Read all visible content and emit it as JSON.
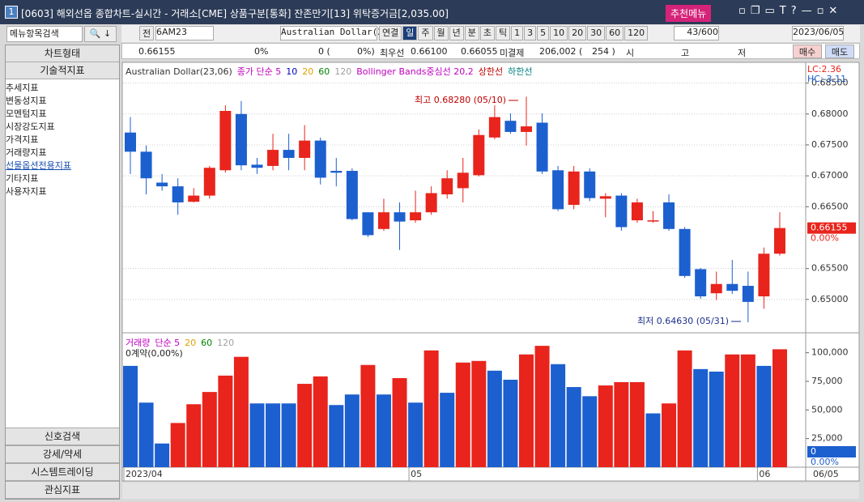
{
  "window": {
    "number": "1",
    "title": "[0603] 해외선옵 종합차트-실시간 - 거래소[CME] 상품구분[통화] 잔존만기[13] 위탁증거금[2,035.00]",
    "menu": "추천메뉴"
  },
  "toolbar": {
    "prev": "전",
    "code": "6AM23",
    "name": "Australian Dollar(23",
    "periods": [
      "연결",
      "일",
      "주",
      "월",
      "년",
      "분",
      "초",
      "틱",
      "1",
      "3",
      "5",
      "10",
      "20",
      "30",
      "60",
      "120"
    ],
    "count": "43/600",
    "date": "2023/06/05"
  },
  "quote": {
    "price": "0.66155",
    "change_pct": "0%",
    "volume": "0 (",
    "volume_pct": "0%)",
    "best_label": "최우선",
    "bid": "0.66100",
    "ask": "0.66055",
    "oi_label": "미결제",
    "oi": "206,002 (",
    "oi_change": "254 )",
    "open_label": "시",
    "high_label": "고",
    "low_label": "저",
    "buy": "매수",
    "sell": "매도"
  },
  "sidebar": {
    "search": "메뉴항목검색",
    "chart_type": "차트형태",
    "indicators": "기술적지표",
    "items": [
      "추세지표",
      "변동성지표",
      "모멘텀지표",
      "시장강도지표",
      "가격지표",
      "거래량지표",
      "선물옵션전용지표",
      "기타지표",
      "사용자지표"
    ],
    "bottom": [
      "신호검색",
      "강세/약세",
      "시스템트레이딩",
      "관심지표"
    ]
  },
  "chart_data": [
    {
      "type": "candlestick",
      "legend": [
        {
          "name": "Australian Dollar(23,06)",
          "color": "#333333"
        },
        {
          "name": "종가 단순 5",
          "color": "#c000c0"
        },
        {
          "name": "10",
          "color": "#0000c0"
        },
        {
          "name": "20",
          "color": "#e0a000"
        },
        {
          "name": "60",
          "color": "#008000"
        },
        {
          "name": "120",
          "color": "#a0a0a0"
        },
        {
          "name": "Bollinger Bands중심선 20,2",
          "color": "#c000c0"
        },
        {
          "name": "상한선",
          "color": "#c00000"
        },
        {
          "name": "하한선",
          "color": "#008080"
        }
      ],
      "categories": [
        "2023/04",
        null,
        null,
        null,
        null,
        null,
        null,
        null,
        null,
        null,
        null,
        null,
        null,
        null,
        null,
        null,
        null,
        null,
        "05",
        null,
        null,
        null,
        null,
        null,
        null,
        null,
        null,
        null,
        null,
        null,
        null,
        null,
        null,
        null,
        null,
        null,
        null,
        null,
        null,
        null,
        "06",
        null
      ],
      "last_date": "06/05",
      "open": [
        0.677,
        0.6739,
        0.6689,
        0.6683,
        0.6658,
        0.6668,
        0.6709,
        0.68,
        0.6718,
        0.6716,
        0.6742,
        0.6729,
        0.6757,
        0.6708,
        0.6708,
        0.6641,
        0.6614,
        0.6641,
        0.6628,
        0.6641,
        0.667,
        0.668,
        0.6701,
        0.6762,
        0.6789,
        0.6771,
        0.6786,
        0.6709,
        0.6653,
        0.6707,
        0.6663,
        0.6668,
        0.6628,
        0.6626,
        0.6657,
        0.6614,
        0.6549,
        0.651,
        0.6525,
        0.6522,
        0.6505,
        0.6574
      ],
      "high": [
        0.6795,
        0.6749,
        0.6703,
        0.6696,
        0.668,
        0.6716,
        0.6814,
        0.6821,
        0.6729,
        0.6768,
        0.6768,
        0.6782,
        0.6762,
        0.6729,
        0.6712,
        0.6641,
        0.6663,
        0.6657,
        0.6676,
        0.6683,
        0.6709,
        0.6729,
        0.6775,
        0.6814,
        0.6801,
        0.6828,
        0.6801,
        0.6716,
        0.6716,
        0.6712,
        0.6672,
        0.6672,
        0.6663,
        0.6643,
        0.667,
        0.6617,
        0.6551,
        0.6545,
        0.6564,
        0.6545,
        0.6584,
        0.6641
      ],
      "low": [
        0.6703,
        0.667,
        0.6676,
        0.6637,
        0.6657,
        0.6663,
        0.6705,
        0.6709,
        0.6703,
        0.6709,
        0.6709,
        0.6709,
        0.6686,
        0.6683,
        0.6628,
        0.6601,
        0.6611,
        0.658,
        0.6624,
        0.6637,
        0.6663,
        0.6657,
        0.6699,
        0.6759,
        0.6768,
        0.6749,
        0.6703,
        0.6643,
        0.6646,
        0.6659,
        0.6633,
        0.6611,
        0.6624,
        0.6624,
        0.6611,
        0.6535,
        0.6501,
        0.6499,
        0.6509,
        0.6463,
        0.6485,
        0.6571
      ],
      "close": [
        0.6739,
        0.6696,
        0.6683,
        0.6657,
        0.6668,
        0.6713,
        0.6805,
        0.6717,
        0.6713,
        0.6742,
        0.6729,
        0.6757,
        0.6697,
        0.6705,
        0.663,
        0.6604,
        0.6641,
        0.6626,
        0.6641,
        0.6672,
        0.6696,
        0.6705,
        0.6766,
        0.6795,
        0.6771,
        0.678,
        0.6707,
        0.6646,
        0.6707,
        0.6664,
        0.6667,
        0.6617,
        0.6657,
        0.6628,
        0.6614,
        0.6538,
        0.6505,
        0.6525,
        0.6514,
        0.6496,
        0.6574,
        0.66155
      ],
      "up_color": "#e8241c",
      "down_color": "#1c5fcf",
      "ylim": [
        0.645,
        0.686
      ],
      "yticks": [
        {
          "value": 0.65,
          "label": "0.65000"
        },
        {
          "value": 0.655,
          "label": "0.65500"
        },
        {
          "value": 0.665,
          "label": "0.66500"
        },
        {
          "value": 0.67,
          "label": "0.67000"
        },
        {
          "value": 0.675,
          "label": "0.67500"
        },
        {
          "value": 0.68,
          "label": "0.68000"
        },
        {
          "value": 0.685,
          "label": "0.68500"
        }
      ],
      "grid": true,
      "annotations": [
        "최고 0.68280 (05/10)",
        "최저 0.64630 (05/31)"
      ],
      "lc": "LC:2.36",
      "hc": "HC:-3.11",
      "last_price": 0.66155,
      "last_change": "0.00%"
    },
    {
      "type": "bar",
      "legend": [
        {
          "name": "거래량",
          "color": "#c000c0"
        },
        {
          "name": "단순 5",
          "color": "#c000c0"
        },
        {
          "name": "20",
          "color": "#e0a000"
        },
        {
          "name": "60",
          "color": "#008000"
        },
        {
          "name": "120",
          "color": "#a0a0a0"
        }
      ],
      "note": "0계약(0,00%)",
      "values": [
        88500,
        56400,
        20700,
        38600,
        55000,
        65700,
        80000,
        96400,
        55700,
        55700,
        55700,
        72800,
        79300,
        54300,
        63500,
        89300,
        63500,
        77800,
        56400,
        102000,
        65000,
        91400,
        92800,
        84300,
        76400,
        98500,
        106000,
        90000,
        70000,
        62000,
        71400,
        74300,
        74300,
        47000,
        55700,
        102000,
        85700,
        83500,
        98500,
        98500,
        88500,
        103000
      ],
      "colors": [
        "#1c5fcf",
        "#1c5fcf",
        "#1c5fcf",
        "#e8241c",
        "#e8241c",
        "#e8241c",
        "#e8241c",
        "#e8241c",
        "#1c5fcf",
        "#1c5fcf",
        "#1c5fcf",
        "#e8241c",
        "#e8241c",
        "#1c5fcf",
        "#1c5fcf",
        "#e8241c",
        "#1c5fcf",
        "#e8241c",
        "#1c5fcf",
        "#e8241c",
        "#1c5fcf",
        "#e8241c",
        "#e8241c",
        "#1c5fcf",
        "#1c5fcf",
        "#e8241c",
        "#e8241c",
        "#1c5fcf",
        "#1c5fcf",
        "#1c5fcf",
        "#e8241c",
        "#e8241c",
        "#e8241c",
        "#1c5fcf",
        "#e8241c",
        "#e8241c",
        "#1c5fcf",
        "#1c5fcf",
        "#e8241c",
        "#e8241c",
        "#1c5fcf",
        "#e8241c"
      ],
      "ylim": [
        0,
        116000
      ],
      "yticks": [
        {
          "value": 25000,
          "label": "25,000"
        },
        {
          "value": 50000,
          "label": "50,000"
        },
        {
          "value": 75000,
          "label": "75,000"
        },
        {
          "value": 100000,
          "label": "100,000"
        }
      ],
      "current": "0",
      "current_pct": "0.00%"
    }
  ]
}
